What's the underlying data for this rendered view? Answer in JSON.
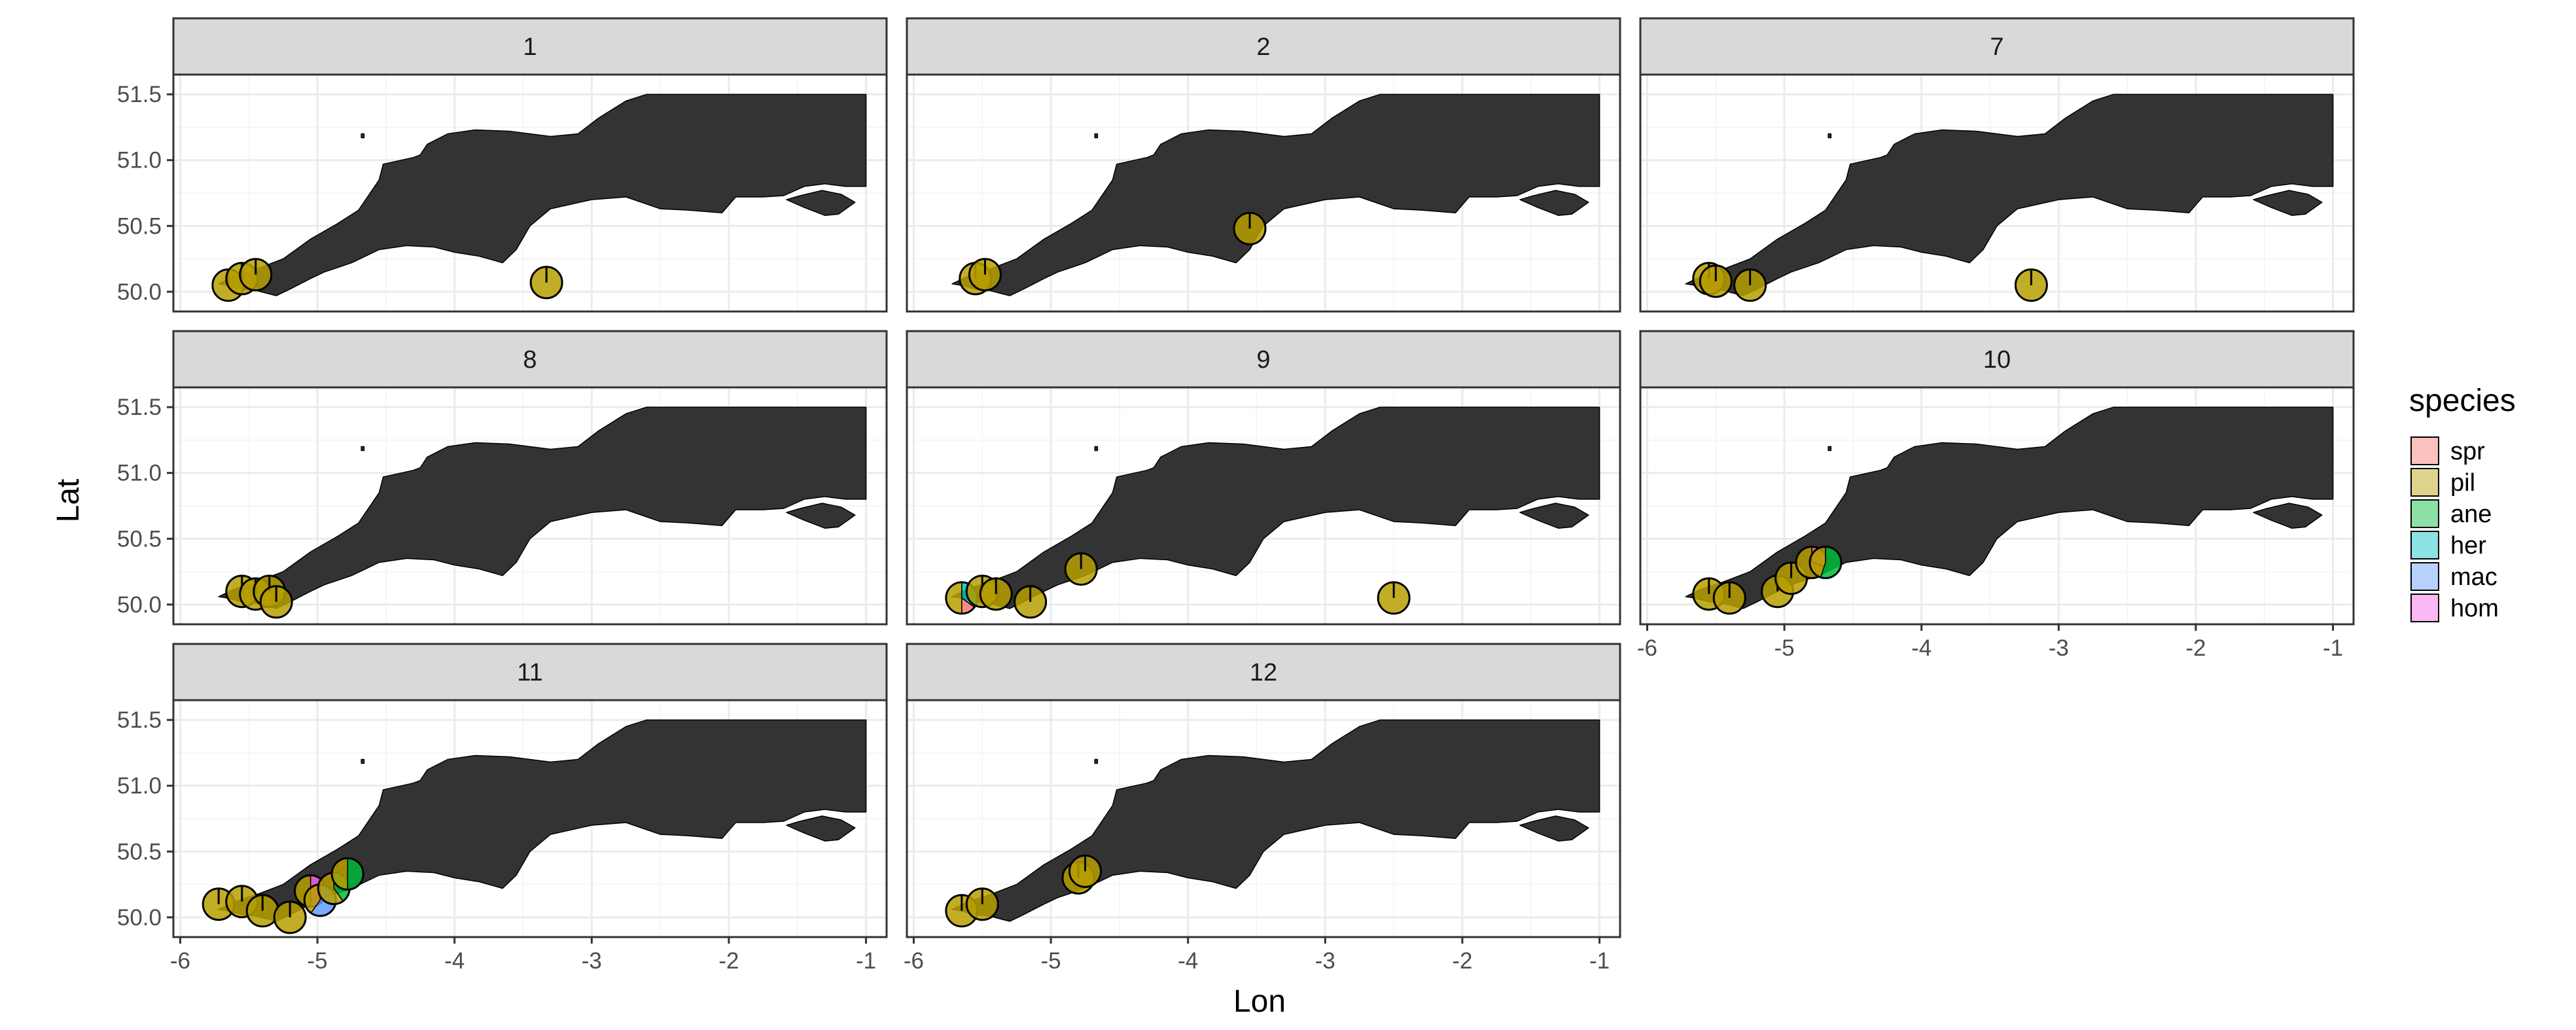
{
  "axes": {
    "xlabel": "Lon",
    "ylabel": "Lat"
  },
  "legend": {
    "title": "species",
    "entries": [
      {
        "label": "spr",
        "color": "#f8766d"
      },
      {
        "label": "pil",
        "color": "#b79f00"
      },
      {
        "label": "ane",
        "color": "#00ba38"
      },
      {
        "label": "her",
        "color": "#00bfc4"
      },
      {
        "label": "mac",
        "color": "#619cff"
      },
      {
        "label": "hom",
        "color": "#f564e3"
      }
    ]
  },
  "chart_data": {
    "type": "map-pie-scatter",
    "xlim": [
      -6.05,
      -0.85
    ],
    "ylim": [
      49.85,
      51.65
    ],
    "x_ticks": [
      -6,
      -5,
      -4,
      -3,
      -2,
      -1
    ],
    "x_tick_labels": [
      "-6",
      "-5",
      "-4",
      "-3",
      "-2",
      "-1"
    ],
    "y_ticks": [
      50.0,
      50.5,
      51.0,
      51.5
    ],
    "y_tick_labels": [
      "50.0",
      "50.5",
      "51.0",
      "51.5"
    ],
    "grid": true,
    "legend_position": "right",
    "panels": [
      {
        "label": "1",
        "points": [
          {
            "lon": -5.65,
            "lat": 50.05,
            "shares": {
              "pil": 1.0
            }
          },
          {
            "lon": -5.55,
            "lat": 50.1,
            "shares": {
              "pil": 1.0
            }
          },
          {
            "lon": -5.45,
            "lat": 50.13,
            "shares": {
              "pil": 1.0
            }
          },
          {
            "lon": -3.33,
            "lat": 50.07,
            "shares": {
              "pil": 1.0
            }
          }
        ]
      },
      {
        "label": "2",
        "points": [
          {
            "lon": -5.55,
            "lat": 50.1,
            "shares": {
              "pil": 1.0
            }
          },
          {
            "lon": -5.48,
            "lat": 50.13,
            "shares": {
              "pil": 1.0
            }
          },
          {
            "lon": -3.55,
            "lat": 50.48,
            "shares": {
              "pil": 1.0
            }
          }
        ]
      },
      {
        "label": "7",
        "points": [
          {
            "lon": -5.55,
            "lat": 50.1,
            "shares": {
              "pil": 1.0
            }
          },
          {
            "lon": -5.5,
            "lat": 50.08,
            "shares": {
              "pil": 1.0
            }
          },
          {
            "lon": -5.25,
            "lat": 50.05,
            "shares": {
              "pil": 1.0
            }
          },
          {
            "lon": -3.2,
            "lat": 50.05,
            "shares": {
              "pil": 1.0
            }
          }
        ]
      },
      {
        "label": "8",
        "points": [
          {
            "lon": -5.55,
            "lat": 50.1,
            "shares": {
              "pil": 1.0
            }
          },
          {
            "lon": -5.45,
            "lat": 50.08,
            "shares": {
              "pil": 1.0
            }
          },
          {
            "lon": -5.35,
            "lat": 50.1,
            "shares": {
              "pil": 1.0
            }
          },
          {
            "lon": -5.3,
            "lat": 50.02,
            "shares": {
              "pil": 1.0
            }
          }
        ]
      },
      {
        "label": "9",
        "points": [
          {
            "lon": -5.65,
            "lat": 50.05,
            "shares": {
              "her": 0.35,
              "spr": 0.15,
              "pil": 0.5
            }
          },
          {
            "lon": -5.5,
            "lat": 50.1,
            "shares": {
              "pil": 1.0
            }
          },
          {
            "lon": -5.4,
            "lat": 50.08,
            "shares": {
              "pil": 1.0
            }
          },
          {
            "lon": -5.15,
            "lat": 50.02,
            "shares": {
              "pil": 1.0
            }
          },
          {
            "lon": -4.78,
            "lat": 50.27,
            "shares": {
              "pil": 1.0
            }
          },
          {
            "lon": -2.5,
            "lat": 50.05,
            "shares": {
              "pil": 1.0
            }
          }
        ]
      },
      {
        "label": "10",
        "points": [
          {
            "lon": -5.55,
            "lat": 50.08,
            "shares": {
              "pil": 1.0
            }
          },
          {
            "lon": -5.4,
            "lat": 50.05,
            "shares": {
              "pil": 1.0
            }
          },
          {
            "lon": -5.05,
            "lat": 50.1,
            "shares": {
              "pil": 1.0
            }
          },
          {
            "lon": -4.95,
            "lat": 50.2,
            "shares": {
              "pil": 1.0
            }
          },
          {
            "lon": -4.8,
            "lat": 50.32,
            "shares": {
              "spr": 0.3,
              "pil": 0.7
            }
          },
          {
            "lon": -4.7,
            "lat": 50.32,
            "shares": {
              "ane": 0.55,
              "pil": 0.45
            }
          }
        ]
      },
      {
        "label": "11",
        "points": [
          {
            "lon": -5.72,
            "lat": 50.1,
            "shares": {
              "pil": 1.0
            }
          },
          {
            "lon": -5.55,
            "lat": 50.12,
            "shares": {
              "pil": 1.0
            }
          },
          {
            "lon": -5.4,
            "lat": 50.05,
            "shares": {
              "pil": 1.0
            }
          },
          {
            "lon": -5.2,
            "lat": 50.0,
            "shares": {
              "pil": 1.0
            }
          },
          {
            "lon": -5.05,
            "lat": 50.2,
            "shares": {
              "hom": 0.5,
              "pil": 0.5
            }
          },
          {
            "lon": -4.98,
            "lat": 50.13,
            "shares": {
              "mac": 0.6,
              "pil": 0.4
            }
          },
          {
            "lon": -4.88,
            "lat": 50.22,
            "shares": {
              "ane": 0.4,
              "pil": 0.6
            }
          },
          {
            "lon": -4.78,
            "lat": 50.33,
            "shares": {
              "ane": 0.5,
              "pil": 0.5
            }
          }
        ]
      },
      {
        "label": "12",
        "points": [
          {
            "lon": -5.65,
            "lat": 50.05,
            "shares": {
              "pil": 1.0
            }
          },
          {
            "lon": -5.5,
            "lat": 50.1,
            "shares": {
              "pil": 1.0
            }
          },
          {
            "lon": -4.8,
            "lat": 50.3,
            "shares": {
              "pil": 1.0
            }
          },
          {
            "lon": -4.75,
            "lat": 50.35,
            "shares": {
              "pil": 1.0
            }
          }
        ]
      }
    ]
  }
}
